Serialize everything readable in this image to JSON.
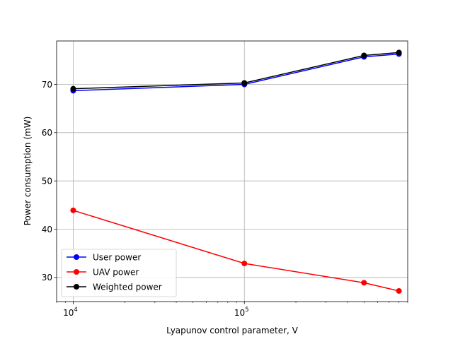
{
  "chart_data": {
    "type": "line",
    "title": "",
    "xlabel": "Lyapunov control parameter, V",
    "ylabel": "Power consumption (mW)",
    "xscale": "log",
    "xlim": [
      8000,
      900000
    ],
    "ylim": [
      25,
      79
    ],
    "x": [
      10000,
      100000,
      500000,
      800000
    ],
    "xticks": [
      {
        "value": 10000,
        "base": "10",
        "exp": "4"
      },
      {
        "value": 100000,
        "base": "10",
        "exp": "5"
      }
    ],
    "yticks": [
      {
        "value": 30,
        "label": "30"
      },
      {
        "value": 40,
        "label": "40"
      },
      {
        "value": 50,
        "label": "50"
      },
      {
        "value": 60,
        "label": "60"
      },
      {
        "value": 70,
        "label": "70"
      }
    ],
    "grid": true,
    "legend_position": "lower-left",
    "series": [
      {
        "name": "User power",
        "color": "#0000ff",
        "values": [
          68.7,
          70.0,
          75.7,
          76.3
        ]
      },
      {
        "name": "UAV power",
        "color": "#ff0000",
        "values": [
          43.9,
          32.9,
          28.9,
          27.2
        ]
      },
      {
        "name": "Weighted power",
        "color": "#000000",
        "values": [
          69.1,
          70.3,
          76.0,
          76.6
        ]
      }
    ]
  }
}
